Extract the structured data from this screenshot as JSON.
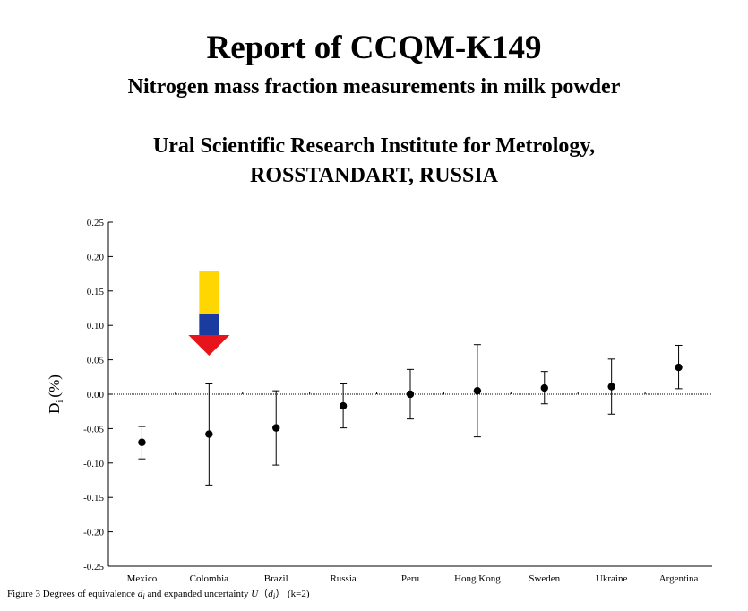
{
  "header": {
    "title": "Report of CCQM-K149",
    "subtitle": "Nitrogen mass fraction measurements in milk powder",
    "institute_line1": "Ural Scientific Research Institute for Metrology,",
    "institute_line2": "ROSSTANDART, RUSSIA"
  },
  "caption": {
    "prefix": "Figure 3 Degrees of equivalence ",
    "d": "d",
    "i1": "i",
    "middle": " and expanded uncertainty ",
    "U": "U",
    "paren_open": "（",
    "d2": "d",
    "i2": "i",
    "paren_close": "）",
    "suffix": " (k=2)"
  },
  "chart_data": {
    "type": "scatter",
    "ylabel": "D",
    "ylabel_sub": "i",
    "ylabel_unit": "(%)",
    "ylim": [
      -0.25,
      0.25
    ],
    "yticks": [
      0.25,
      0.2,
      0.15,
      0.1,
      0.05,
      0.0,
      -0.05,
      -0.1,
      -0.15,
      -0.2,
      -0.25
    ],
    "ytick_labels": [
      "0.25",
      "0.20",
      "0.15",
      "0.10",
      "0.05",
      "0.00",
      "-0.05",
      "-0.10",
      "-0.15",
      "-0.20",
      "-0.25"
    ],
    "categories": [
      "Mexico",
      "Colombia",
      "Brazil",
      "Russia",
      "Peru",
      "Hong Kong",
      "Sweden",
      "Ukraine",
      "Argentina"
    ],
    "values": [
      -0.07,
      -0.058,
      -0.049,
      -0.017,
      0.0,
      0.005,
      0.009,
      0.011,
      0.039
    ],
    "err_low": [
      -0.094,
      -0.132,
      -0.103,
      -0.049,
      -0.036,
      -0.062,
      -0.014,
      -0.029,
      0.008
    ],
    "err_high": [
      -0.047,
      0.015,
      0.005,
      0.015,
      0.036,
      0.072,
      0.033,
      0.051,
      0.071
    ],
    "reference_line": 0.0,
    "grid": false,
    "annotation": {
      "type": "arrow",
      "category": "Colombia",
      "colors": [
        "#FFD600",
        "#1A3CA0",
        "#E8141C"
      ]
    }
  }
}
